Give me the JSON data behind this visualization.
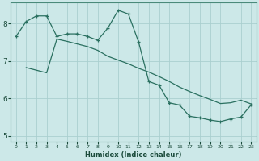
{
  "xlabel": "Humidex (Indice chaleur)",
  "bg_color": "#cce8e8",
  "grid_color": "#aacfcf",
  "line_color": "#2a7060",
  "xlim": [
    -0.5,
    23.5
  ],
  "ylim": [
    4.85,
    8.55
  ],
  "yticks": [
    5,
    6,
    7,
    8
  ],
  "xticks": [
    0,
    1,
    2,
    3,
    4,
    5,
    6,
    7,
    8,
    9,
    10,
    11,
    12,
    13,
    14,
    15,
    16,
    17,
    18,
    19,
    20,
    21,
    22,
    23
  ],
  "curve1_x": [
    0,
    1,
    2,
    3,
    4,
    5,
    6,
    7,
    8,
    9,
    10,
    11,
    12,
    13,
    14,
    15,
    16,
    17,
    18,
    19,
    20,
    21,
    22,
    23
  ],
  "curve1_y": [
    7.65,
    8.05,
    8.2,
    8.2,
    7.65,
    7.72,
    7.72,
    7.65,
    7.55,
    7.88,
    8.35,
    8.25,
    7.5,
    6.45,
    6.35,
    5.88,
    5.82,
    5.52,
    5.48,
    5.42,
    5.38,
    5.45,
    5.5,
    5.82
  ],
  "curve2_x": [
    1,
    2,
    3,
    4,
    5,
    6,
    7,
    8,
    9,
    10,
    11,
    12,
    13,
    14,
    15,
    16,
    17,
    18,
    19,
    20,
    21,
    22,
    23
  ],
  "curve2_y": [
    6.82,
    6.75,
    6.68,
    7.58,
    7.52,
    7.45,
    7.38,
    7.28,
    7.12,
    7.02,
    6.92,
    6.8,
    6.7,
    6.58,
    6.45,
    6.3,
    6.18,
    6.07,
    5.97,
    5.86,
    5.88,
    5.95,
    5.85
  ]
}
